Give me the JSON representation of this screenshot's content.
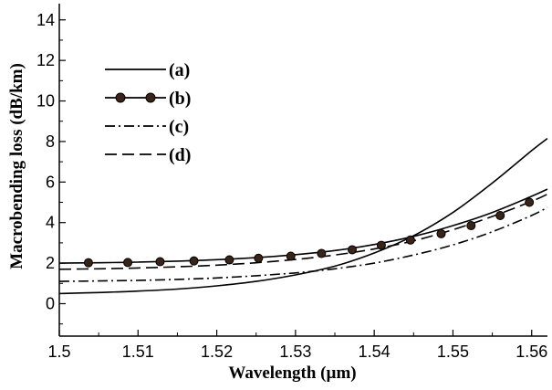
{
  "chart_data": {
    "type": "line",
    "title": "",
    "xlabel": "Wavelength (µm)",
    "ylabel": "Macrobending loss (dB/km)",
    "xlim": [
      1.5,
      1.562
    ],
    "ylim": [
      -1.6,
      14.8
    ],
    "x_ticks": [
      1.5,
      1.51,
      1.52,
      1.53,
      1.54,
      1.55,
      1.56
    ],
    "x_tick_labels": [
      "1.5",
      "1.51",
      "1.52",
      "1.53",
      "1.54",
      "1.55",
      "1.56"
    ],
    "y_ticks": [
      0,
      2,
      4,
      6,
      8,
      10,
      12,
      14
    ],
    "y_tick_labels": [
      "0",
      "2",
      "4",
      "6",
      "8",
      "10",
      "12",
      "14"
    ],
    "grid": false,
    "legend_position": "top-left",
    "x": [
      1.5,
      1.505,
      1.51,
      1.515,
      1.52,
      1.525,
      1.53,
      1.535,
      1.54,
      1.545,
      1.55,
      1.555,
      1.56,
      1.562
    ],
    "series": [
      {
        "name": "(a)",
        "style": "solid",
        "values": [
          0.5,
          0.55,
          0.62,
          0.72,
          0.88,
          1.1,
          1.42,
          1.85,
          2.5,
          3.35,
          4.5,
          5.95,
          7.55,
          8.15
        ]
      },
      {
        "name": "(b)",
        "style": "solid-dots",
        "values": [
          2.0,
          2.02,
          2.05,
          2.1,
          2.17,
          2.27,
          2.42,
          2.62,
          2.92,
          3.32,
          3.85,
          4.5,
          5.3,
          5.65
        ]
      },
      {
        "name": "(c)",
        "style": "dash-dot",
        "values": [
          1.1,
          1.12,
          1.15,
          1.2,
          1.27,
          1.38,
          1.52,
          1.72,
          2.0,
          2.4,
          2.9,
          3.55,
          4.35,
          4.75
        ]
      },
      {
        "name": "(d)",
        "style": "dashed",
        "values": [
          1.7,
          1.72,
          1.76,
          1.82,
          1.9,
          2.02,
          2.18,
          2.4,
          2.7,
          3.1,
          3.65,
          4.3,
          5.05,
          5.4
        ]
      }
    ],
    "markers_b": {
      "x": [
        1.5037,
        1.5087,
        1.5128,
        1.5171,
        1.5216,
        1.5253,
        1.5294,
        1.5333,
        1.5372,
        1.5409,
        1.5446,
        1.5485,
        1.5523,
        1.556,
        1.5597
      ],
      "y": [
        2.02,
        2.03,
        2.07,
        2.11,
        2.16,
        2.24,
        2.34,
        2.48,
        2.66,
        2.88,
        3.14,
        3.45,
        3.85,
        4.35,
        5.0
      ]
    }
  }
}
